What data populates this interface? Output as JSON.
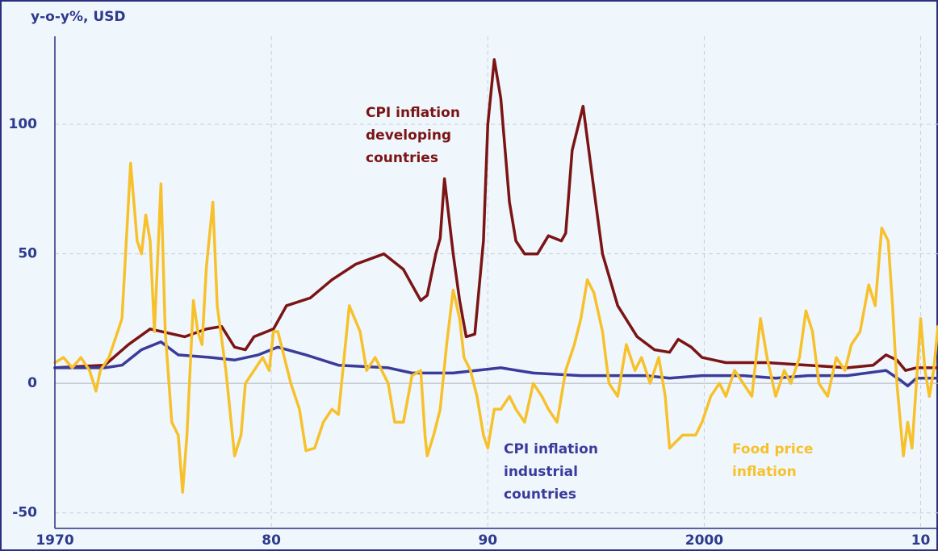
{
  "chart_data": {
    "type": "line",
    "axis_label": "y-o-y%, USD",
    "xlim": [
      1970,
      2010.8
    ],
    "ylim": [
      -56,
      134
    ],
    "xticks": [
      1970,
      {
        "value": 1980,
        "label": "80"
      },
      {
        "value": 1990,
        "label": "90"
      },
      2000,
      {
        "value": 2010,
        "label": "10"
      }
    ],
    "yticks": [
      -50,
      0,
      50,
      100
    ],
    "grid": true,
    "series": [
      {
        "name": "CPI inflation developing countries",
        "color": "#7b1414",
        "x": [
          1970,
          1972.3,
          1973.4,
          1974.4,
          1976,
          1977,
          1977.7,
          1978.3,
          1978.8,
          1979.2,
          1980.1,
          1980.7,
          1981.8,
          1982.8,
          1983.9,
          1985.2,
          1986.1,
          1986.5,
          1986.9,
          1987.2,
          1987.6,
          1987.8,
          1988.0,
          1988.4,
          1988.7,
          1989.0,
          1989.4,
          1989.8,
          1990.0,
          1990.3,
          1990.6,
          1991.0,
          1991.3,
          1991.7,
          1992.3,
          1992.8,
          1993.4,
          1993.6,
          1993.9,
          1994.4,
          1994.9,
          1995.3,
          1996.0,
          1996.9,
          1997.7,
          1998.4,
          1998.8,
          1999.4,
          1999.9,
          2001.0,
          2002.9,
          2004.8,
          2006.6,
          2007.8,
          2008.4,
          2008.9,
          2009.3,
          2009.8,
          2010.8
        ],
        "values": [
          6,
          7,
          15,
          21,
          18,
          21,
          22,
          14,
          13,
          18,
          21,
          30,
          33,
          40,
          46,
          50,
          44,
          38,
          32,
          34,
          50,
          56,
          79,
          50,
          32,
          18,
          19,
          55,
          100,
          125,
          110,
          70,
          55,
          50,
          50,
          57,
          55,
          58,
          90,
          107,
          75,
          50,
          30,
          18,
          13,
          12,
          17,
          14,
          10,
          8,
          8,
          7,
          6,
          7,
          11,
          9,
          5,
          6,
          6
        ]
      },
      {
        "name": "CPI inflation industrial countries",
        "color": "#3b3b9b",
        "x": [
          1970,
          1972.3,
          1973.1,
          1974.0,
          1974.9,
          1975.7,
          1977.2,
          1978.3,
          1979.4,
          1980.3,
          1981.6,
          1983.1,
          1985.4,
          1986.5,
          1988.4,
          1990.6,
          1992.1,
          1994.3,
          1997.3,
          1998.4,
          1999.9,
          2001.8,
          2003.3,
          2004.8,
          2006.6,
          2008.4,
          2009.1,
          2009.4,
          2009.8,
          2010.8
        ],
        "values": [
          6,
          6,
          7,
          13,
          16,
          11,
          10,
          9,
          11,
          14,
          11,
          7,
          6,
          4,
          4,
          6,
          4,
          3,
          3,
          2,
          3,
          3,
          2,
          3,
          3,
          5,
          1,
          -1,
          2,
          2
        ]
      },
      {
        "name": "Food price inflation",
        "color": "#f7c12c",
        "x": [
          1970,
          1970.4,
          1970.8,
          1971.2,
          1971.6,
          1971.9,
          1972.1,
          1972.5,
          1972.9,
          1973.1,
          1973.2,
          1973.5,
          1973.8,
          1974.0,
          1974.2,
          1974.4,
          1974.6,
          1974.9,
          1975.1,
          1975.4,
          1975.7,
          1975.9,
          1976.1,
          1976.4,
          1976.6,
          1976.8,
          1977.0,
          1977.3,
          1977.5,
          1977.9,
          1978.3,
          1978.6,
          1978.8,
          1979.2,
          1979.6,
          1979.9,
          1980.1,
          1980.3,
          1980.6,
          1980.9,
          1981.3,
          1981.6,
          1982.0,
          1982.4,
          1982.8,
          1983.1,
          1983.6,
          1984.1,
          1984.4,
          1984.8,
          1985.4,
          1985.7,
          1986.1,
          1986.5,
          1986.9,
          1987.1,
          1987.2,
          1987.5,
          1987.8,
          1988.1,
          1988.4,
          1988.7,
          1988.9,
          1989.2,
          1989.5,
          1989.8,
          1990.0,
          1990.3,
          1990.6,
          1991.0,
          1991.3,
          1991.7,
          1992.1,
          1992.5,
          1992.8,
          1993.2,
          1993.6,
          1994.0,
          1994.3,
          1994.6,
          1994.9,
          1995.3,
          1995.6,
          1996.0,
          1996.4,
          1996.8,
          1997.1,
          1997.5,
          1997.9,
          1998.2,
          1998.4,
          1999.0,
          1999.6,
          1999.9,
          2000.3,
          2000.7,
          2001.0,
          2001.4,
          2001.8,
          2002.2,
          2002.6,
          2002.9,
          2003.3,
          2003.7,
          2004.0,
          2004.4,
          2004.7,
          2005.0,
          2005.3,
          2005.7,
          2006.1,
          2006.5,
          2006.8,
          2007.2,
          2007.6,
          2007.9,
          2008.2,
          2008.5,
          2008.7,
          2008.9,
          2009.2,
          2009.4,
          2009.6,
          2009.8,
          2010.0,
          2010.2,
          2010.4,
          2010.6,
          2010.8
        ],
        "values": [
          8,
          10,
          6,
          10,
          5,
          -3,
          5,
          10,
          20,
          25,
          40,
          85,
          55,
          50,
          65,
          55,
          20,
          77,
          20,
          -15,
          -20,
          -42,
          -20,
          32,
          20,
          15,
          45,
          70,
          30,
          5,
          -28,
          -20,
          0,
          5,
          10,
          5,
          20,
          20,
          10,
          0,
          -10,
          -26,
          -25,
          -15,
          -10,
          -12,
          30,
          20,
          5,
          10,
          0,
          -15,
          -15,
          3,
          5,
          -20,
          -28,
          -20,
          -10,
          15,
          36,
          25,
          10,
          5,
          -5,
          -20,
          -25,
          -10,
          -10,
          -5,
          -10,
          -15,
          0,
          -5,
          -10,
          -15,
          5,
          15,
          25,
          40,
          35,
          20,
          0,
          -5,
          15,
          5,
          10,
          0,
          10,
          -5,
          -25,
          -20,
          -20,
          -15,
          -5,
          0,
          -5,
          5,
          0,
          -5,
          25,
          10,
          -5,
          5,
          0,
          10,
          28,
          20,
          0,
          -5,
          10,
          5,
          15,
          20,
          38,
          30,
          60,
          55,
          30,
          0,
          -28,
          -15,
          -25,
          0,
          25,
          5,
          -5,
          5,
          22
        ]
      }
    ],
    "annotations": [
      {
        "text": [
          "CPI inflation",
          "developing",
          "countries"
        ],
        "color": "#7b1414"
      },
      {
        "text": [
          "CPI inflation",
          "industrial",
          "countries"
        ],
        "color": "#3b3b9b"
      },
      {
        "text": [
          "Food price",
          "inflation"
        ],
        "color": "#f7c12c"
      }
    ]
  }
}
